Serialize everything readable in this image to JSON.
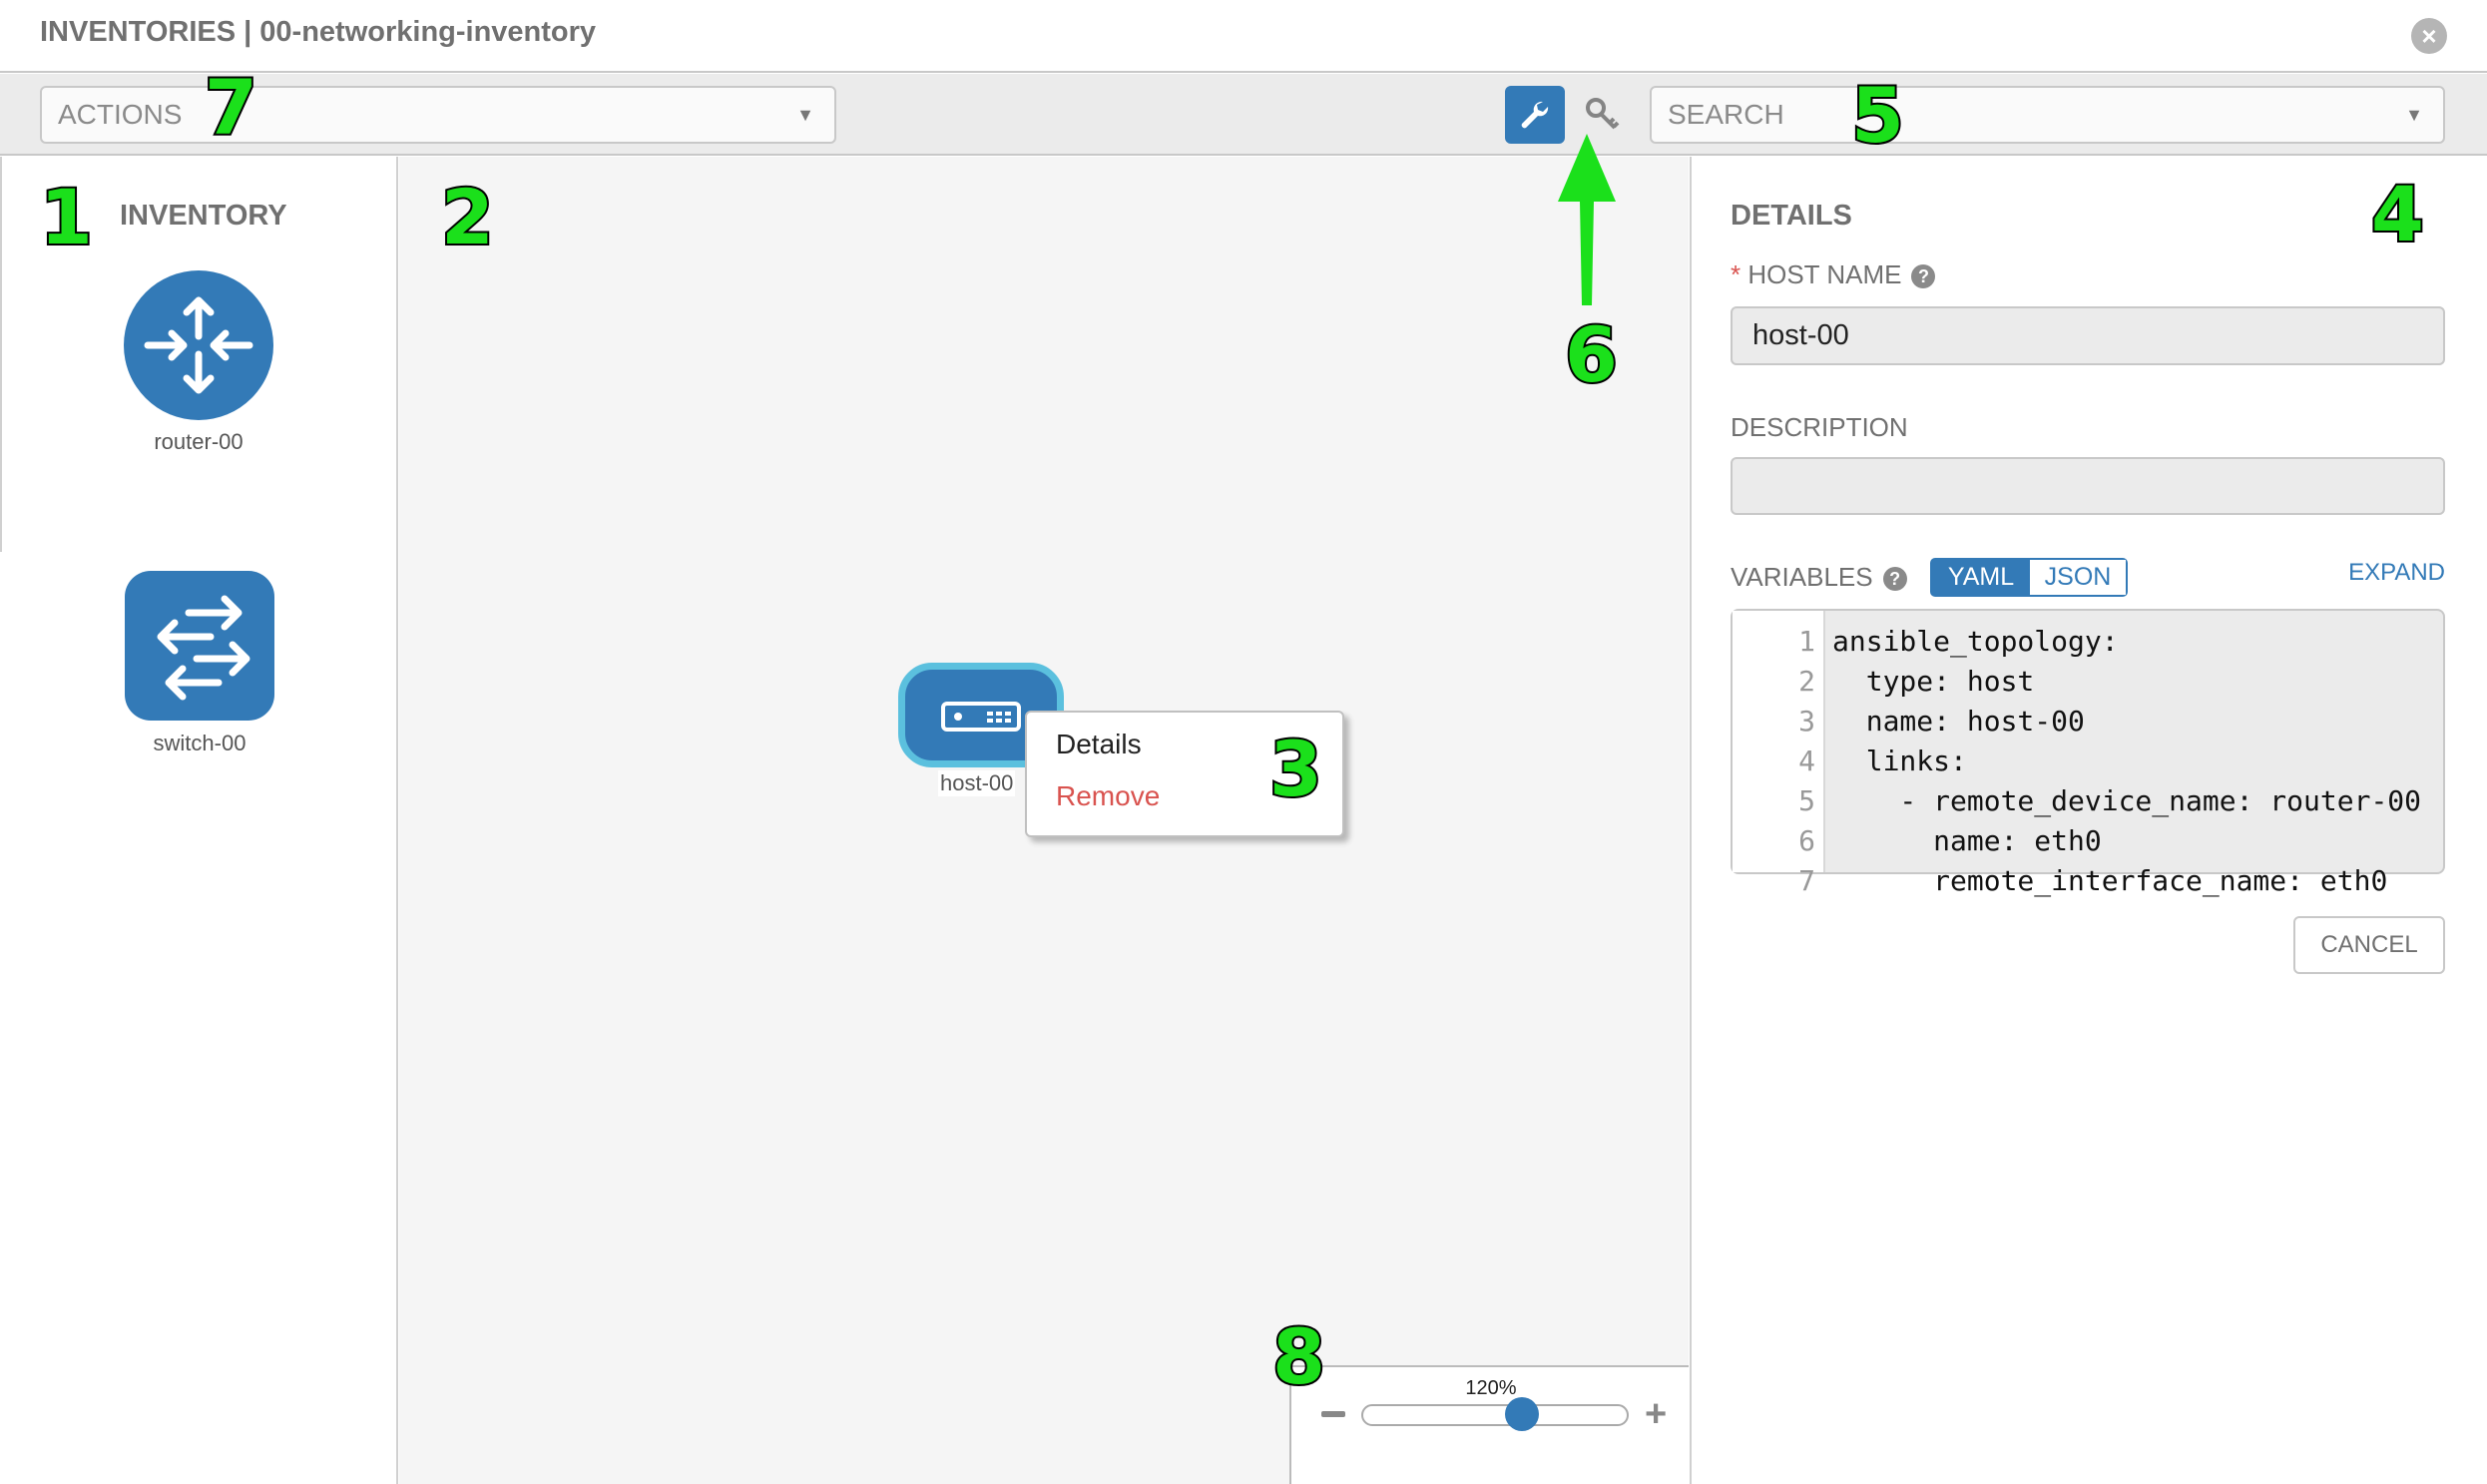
{
  "header": {
    "title": "INVENTORIES | 00-networking-inventory",
    "close_icon": "close-circle-icon"
  },
  "toolbar": {
    "actions_placeholder": "ACTIONS",
    "search_placeholder": "SEARCH",
    "wrench_icon": "wrench-icon",
    "key_icon": "key-icon"
  },
  "inventory": {
    "title": "INVENTORY",
    "items": [
      {
        "label": "router-00",
        "icon": "router-icon"
      },
      {
        "label": "switch-00",
        "icon": "switch-icon"
      }
    ]
  },
  "canvas": {
    "node": {
      "label": "host-00",
      "icon": "host-server-icon"
    },
    "context_menu": {
      "details": "Details",
      "remove": "Remove"
    },
    "zoom": {
      "label": "120%",
      "level_fraction": 0.6
    }
  },
  "details": {
    "title": "DETAILS",
    "host_name_label": "HOST NAME",
    "host_name_value": "host-00",
    "description_label": "DESCRIPTION",
    "description_value": "",
    "variables_label": "VARIABLES",
    "yaml_label": "YAML",
    "json_label": "JSON",
    "expand_label": "EXPAND",
    "cancel_label": "CANCEL",
    "code_lines": [
      "ansible_topology:",
      "  type: host",
      "  name: host-00",
      "  links:",
      "    - remote_device_name: router-00",
      "      name: eth0",
      "      remote_interface_name: eth0"
    ]
  },
  "annotations": [
    "1",
    "2",
    "3",
    "4",
    "5",
    "6",
    "7",
    "8"
  ],
  "colors": {
    "primary": "#337ab7",
    "node_border": "#5bc0de",
    "danger": "#d9534f",
    "annotation": "#1be01b"
  }
}
